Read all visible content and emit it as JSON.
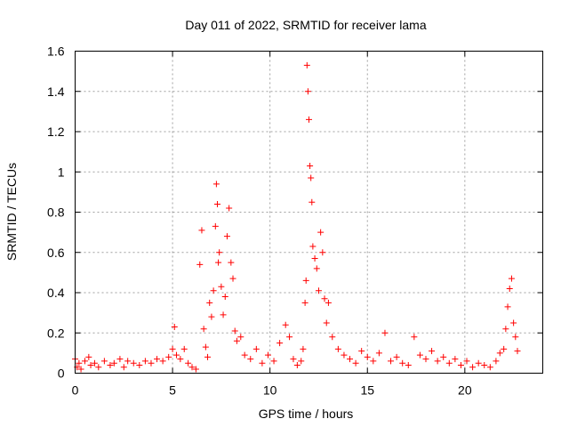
{
  "chart_data": {
    "type": "scatter",
    "title": "Day 011 of 2022, SRMTID for receiver lama",
    "xlabel": "GPS time / hours",
    "ylabel": "SRMTID / TECUs",
    "xlim": [
      0,
      24
    ],
    "ylim": [
      0,
      1.6
    ],
    "xticks": [
      0,
      5,
      10,
      15,
      20
    ],
    "yticks": [
      0,
      0.2,
      0.4,
      0.6,
      0.8,
      1,
      1.2,
      1.4,
      1.6
    ],
    "xtick_labels": [
      "0",
      "5",
      "10",
      "15",
      "20"
    ],
    "ytick_labels": [
      "0",
      "0.2",
      "0.4",
      "0.6",
      "0.8",
      "1",
      "1.2",
      "1.4",
      "1.6"
    ],
    "grid": true,
    "marker": "+",
    "color": "#ff0000",
    "series": [
      {
        "name": "SRMTID",
        "x": [
          0.0,
          0.1,
          0.2,
          0.3,
          0.5,
          0.7,
          0.8,
          1.0,
          1.2,
          1.5,
          1.8,
          2.0,
          2.3,
          2.5,
          2.7,
          3.0,
          3.3,
          3.6,
          3.9,
          4.2,
          4.5,
          4.8,
          5.0,
          5.1,
          5.2,
          5.4,
          5.6,
          5.8,
          6.0,
          6.2,
          6.4,
          6.5,
          6.6,
          6.7,
          6.8,
          6.9,
          7.0,
          7.1,
          7.2,
          7.25,
          7.3,
          7.35,
          7.4,
          7.5,
          7.6,
          7.7,
          7.8,
          7.9,
          8.0,
          8.1,
          8.2,
          8.3,
          8.5,
          8.7,
          9.0,
          9.3,
          9.6,
          9.9,
          10.2,
          10.5,
          10.8,
          11.0,
          11.2,
          11.4,
          11.6,
          11.7,
          11.8,
          11.85,
          11.9,
          11.95,
          12.0,
          12.05,
          12.1,
          12.15,
          12.2,
          12.3,
          12.4,
          12.5,
          12.6,
          12.7,
          12.8,
          12.9,
          13.0,
          13.2,
          13.5,
          13.8,
          14.1,
          14.4,
          14.7,
          15.0,
          15.3,
          15.6,
          15.9,
          16.2,
          16.5,
          16.8,
          17.1,
          17.4,
          17.7,
          18.0,
          18.3,
          18.6,
          18.9,
          19.2,
          19.5,
          19.8,
          20.1,
          20.4,
          20.7,
          21.0,
          21.3,
          21.6,
          21.8,
          22.0,
          22.1,
          22.2,
          22.3,
          22.4,
          22.5,
          22.6,
          22.7
        ],
        "y": [
          0.07,
          0.03,
          0.05,
          0.02,
          0.06,
          0.08,
          0.04,
          0.05,
          0.03,
          0.06,
          0.04,
          0.05,
          0.07,
          0.03,
          0.06,
          0.05,
          0.04,
          0.06,
          0.05,
          0.07,
          0.06,
          0.08,
          0.12,
          0.23,
          0.09,
          0.07,
          0.12,
          0.05,
          0.03,
          0.02,
          0.54,
          0.71,
          0.22,
          0.13,
          0.08,
          0.35,
          0.28,
          0.41,
          0.73,
          0.94,
          0.84,
          0.55,
          0.6,
          0.43,
          0.29,
          0.38,
          0.68,
          0.82,
          0.55,
          0.47,
          0.21,
          0.16,
          0.18,
          0.09,
          0.07,
          0.12,
          0.05,
          0.09,
          0.06,
          0.15,
          0.24,
          0.18,
          0.07,
          0.04,
          0.06,
          0.12,
          0.35,
          0.46,
          1.53,
          1.4,
          1.26,
          1.03,
          0.97,
          0.85,
          0.63,
          0.57,
          0.52,
          0.41,
          0.7,
          0.6,
          0.37,
          0.25,
          0.35,
          0.18,
          0.12,
          0.09,
          0.07,
          0.05,
          0.11,
          0.08,
          0.06,
          0.1,
          0.2,
          0.06,
          0.08,
          0.05,
          0.04,
          0.18,
          0.09,
          0.07,
          0.11,
          0.06,
          0.08,
          0.05,
          0.07,
          0.04,
          0.06,
          0.03,
          0.05,
          0.04,
          0.03,
          0.06,
          0.1,
          0.12,
          0.22,
          0.33,
          0.42,
          0.47,
          0.25,
          0.18,
          0.11
        ]
      }
    ]
  }
}
